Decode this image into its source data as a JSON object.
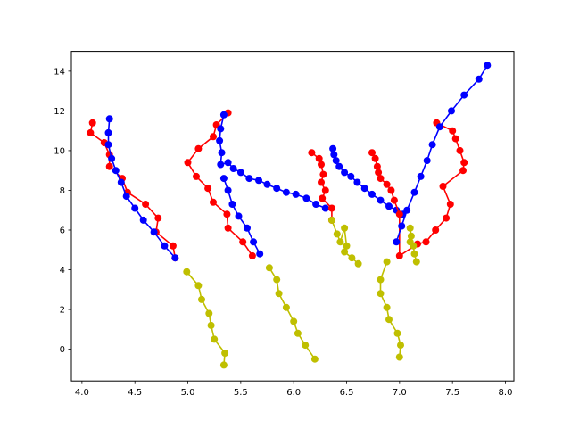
{
  "chart_data": {
    "type": "line",
    "title": "",
    "xlabel": "",
    "ylabel": "",
    "xlim": [
      3.9,
      8.08
    ],
    "ylim": [
      -1.6,
      15.0
    ],
    "grid": false,
    "legend": "none",
    "x_ticks": [
      "4.0",
      "4.5",
      "5.0",
      "5.5",
      "6.0",
      "6.5",
      "7.0",
      "7.5",
      "8.0"
    ],
    "y_ticks": [
      "0",
      "2",
      "4",
      "6",
      "8",
      "10",
      "12",
      "14"
    ],
    "series": [
      {
        "color": "#ff0000",
        "points": [
          [
            4.1,
            11.4
          ],
          [
            4.08,
            10.9
          ],
          [
            4.21,
            10.4
          ],
          [
            4.26,
            9.8
          ],
          [
            4.26,
            9.2
          ],
          [
            4.38,
            8.6
          ],
          [
            4.43,
            7.9
          ],
          [
            4.6,
            7.3
          ],
          [
            4.72,
            6.6
          ],
          [
            4.7,
            5.9
          ],
          [
            4.86,
            5.2
          ],
          [
            4.88,
            4.6
          ]
        ]
      },
      {
        "color": "#0000ff",
        "points": [
          [
            4.26,
            11.6
          ],
          [
            4.25,
            10.9
          ],
          [
            4.25,
            10.3
          ],
          [
            4.28,
            9.6
          ],
          [
            4.32,
            9.0
          ],
          [
            4.37,
            8.4
          ],
          [
            4.42,
            7.7
          ],
          [
            4.5,
            7.1
          ],
          [
            4.58,
            6.5
          ],
          [
            4.68,
            5.9
          ],
          [
            4.78,
            5.2
          ],
          [
            4.88,
            4.6
          ]
        ]
      },
      {
        "color": "#bfbf00",
        "points": [
          [
            4.99,
            3.9
          ],
          [
            5.1,
            3.2
          ],
          [
            5.13,
            2.5
          ],
          [
            5.2,
            1.8
          ],
          [
            5.22,
            1.2
          ],
          [
            5.25,
            0.5
          ],
          [
            5.35,
            -0.2
          ],
          [
            5.34,
            -0.8
          ]
        ]
      },
      {
        "color": "#ff0000",
        "points": [
          [
            5.38,
            11.9
          ],
          [
            5.27,
            11.3
          ],
          [
            5.24,
            10.7
          ],
          [
            5.1,
            10.1
          ],
          [
            5.0,
            9.4
          ],
          [
            5.08,
            8.7
          ],
          [
            5.19,
            8.1
          ],
          [
            5.24,
            7.4
          ],
          [
            5.37,
            6.8
          ],
          [
            5.38,
            6.1
          ],
          [
            5.52,
            5.4
          ],
          [
            5.61,
            4.7
          ]
        ]
      },
      {
        "color": "#0000ff",
        "points": [
          [
            5.34,
            11.8
          ],
          [
            5.31,
            11.1
          ],
          [
            5.3,
            10.5
          ],
          [
            5.32,
            9.9
          ],
          [
            5.31,
            9.3
          ],
          [
            5.38,
            9.4
          ],
          [
            5.43,
            9.1
          ],
          [
            5.5,
            8.9
          ],
          [
            5.58,
            8.6
          ],
          [
            5.67,
            8.5
          ],
          [
            5.75,
            8.3
          ],
          [
            5.84,
            8.1
          ],
          [
            5.93,
            7.9
          ],
          [
            6.02,
            7.8
          ],
          [
            6.12,
            7.6
          ],
          [
            6.21,
            7.3
          ],
          [
            6.3,
            7.1
          ]
        ]
      },
      {
        "color": "#0000ff",
        "points": [
          [
            5.34,
            8.6
          ],
          [
            5.38,
            8.0
          ],
          [
            5.42,
            7.3
          ],
          [
            5.48,
            6.7
          ],
          [
            5.56,
            6.1
          ],
          [
            5.62,
            5.4
          ],
          [
            5.68,
            4.8
          ]
        ]
      },
      {
        "color": "#bfbf00",
        "points": [
          [
            5.77,
            4.1
          ],
          [
            5.84,
            3.5
          ],
          [
            5.86,
            2.8
          ],
          [
            5.93,
            2.1
          ],
          [
            6.0,
            1.4
          ],
          [
            6.04,
            0.8
          ],
          [
            6.11,
            0.2
          ],
          [
            6.2,
            -0.5
          ]
        ]
      },
      {
        "color": "#ff0000",
        "points": [
          [
            6.17,
            9.9
          ],
          [
            6.24,
            9.6
          ],
          [
            6.26,
            9.3
          ],
          [
            6.28,
            8.8
          ],
          [
            6.26,
            8.4
          ],
          [
            6.3,
            8.0
          ],
          [
            6.27,
            7.6
          ],
          [
            6.36,
            7.1
          ],
          [
            6.36,
            6.5
          ]
        ]
      },
      {
        "color": "#0000ff",
        "points": [
          [
            6.37,
            10.1
          ],
          [
            6.38,
            9.8
          ],
          [
            6.4,
            9.5
          ],
          [
            6.43,
            9.2
          ],
          [
            6.48,
            8.9
          ],
          [
            6.54,
            8.7
          ],
          [
            6.6,
            8.4
          ],
          [
            6.67,
            8.1
          ],
          [
            6.74,
            7.8
          ],
          [
            6.82,
            7.5
          ],
          [
            6.9,
            7.2
          ],
          [
            6.97,
            7.0
          ],
          [
            7.03,
            6.8
          ]
        ]
      },
      {
        "color": "#bfbf00",
        "points": [
          [
            6.36,
            6.5
          ],
          [
            6.41,
            5.8
          ],
          [
            6.44,
            5.4
          ],
          [
            6.48,
            6.1
          ],
          [
            6.5,
            5.2
          ],
          [
            6.48,
            4.9
          ],
          [
            6.55,
            4.6
          ],
          [
            6.61,
            4.3
          ]
        ]
      },
      {
        "color": "#ff0000",
        "points": [
          [
            6.74,
            9.9
          ],
          [
            6.77,
            9.6
          ],
          [
            6.79,
            9.2
          ],
          [
            6.8,
            8.9
          ],
          [
            6.82,
            8.6
          ],
          [
            6.88,
            8.3
          ],
          [
            6.92,
            8.0
          ],
          [
            6.95,
            7.5
          ],
          [
            7.0,
            6.8
          ],
          [
            7.0,
            4.7
          ],
          [
            7.17,
            5.3
          ],
          [
            7.25,
            5.4
          ],
          [
            7.34,
            6.0
          ],
          [
            7.44,
            6.6
          ],
          [
            7.48,
            7.3
          ],
          [
            7.41,
            8.2
          ],
          [
            7.6,
            9.0
          ],
          [
            7.61,
            9.4
          ],
          [
            7.57,
            10.0
          ],
          [
            7.53,
            10.6
          ],
          [
            7.5,
            11.0
          ],
          [
            7.35,
            11.4
          ]
        ]
      },
      {
        "color": "#0000ff",
        "points": [
          [
            6.97,
            5.4
          ],
          [
            7.02,
            6.2
          ],
          [
            7.07,
            7.0
          ],
          [
            7.14,
            7.9
          ],
          [
            7.2,
            8.7
          ],
          [
            7.26,
            9.5
          ],
          [
            7.31,
            10.3
          ],
          [
            7.38,
            11.2
          ],
          [
            7.49,
            12.0
          ],
          [
            7.61,
            12.8
          ],
          [
            7.75,
            13.6
          ],
          [
            7.83,
            14.3
          ]
        ]
      },
      {
        "color": "#bfbf00",
        "points": [
          [
            7.1,
            6.1
          ],
          [
            7.11,
            5.7
          ],
          [
            7.1,
            5.4
          ],
          [
            7.13,
            5.2
          ],
          [
            7.14,
            4.8
          ],
          [
            7.16,
            4.4
          ]
        ]
      },
      {
        "color": "#bfbf00",
        "points": [
          [
            6.88,
            4.4
          ],
          [
            6.82,
            3.5
          ],
          [
            6.82,
            2.8
          ],
          [
            6.88,
            2.1
          ],
          [
            6.9,
            1.5
          ],
          [
            6.98,
            0.8
          ],
          [
            7.01,
            0.2
          ],
          [
            7.0,
            -0.4
          ]
        ]
      }
    ]
  }
}
